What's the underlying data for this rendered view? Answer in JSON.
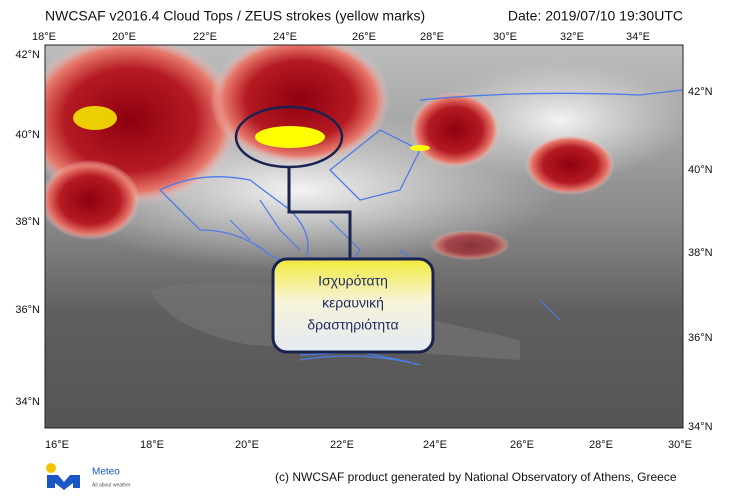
{
  "header": {
    "title": "NWCSAF v2016.4 Cloud Tops / ZEUS strokes (yellow marks)",
    "date": "Date: 2019/07/10 19:30UTC"
  },
  "axes": {
    "top": [
      "18°E",
      "20°E",
      "22°E",
      "24°E",
      "26°E",
      "28°E",
      "30°E",
      "32°E",
      "34°E"
    ],
    "left": [
      "42°N",
      "40°N",
      "38°N",
      "36°N",
      "34°N"
    ],
    "right": [
      "42°N",
      "40°N",
      "38°N",
      "36°N",
      "34°N"
    ],
    "bottom": [
      "16°E",
      "18°E",
      "20°E",
      "22°E",
      "24°E",
      "26°E",
      "28°E",
      "30°E"
    ]
  },
  "callout": {
    "lines": [
      "Ισχυρότατη",
      "κεραυνική",
      "δραστηριότητα"
    ]
  },
  "footer": {
    "credit": "(c) NWCSAF product generated by National Observatory of Athens, Greece"
  },
  "logo": {
    "name": "Meteo",
    "tagline": "All about weather"
  }
}
